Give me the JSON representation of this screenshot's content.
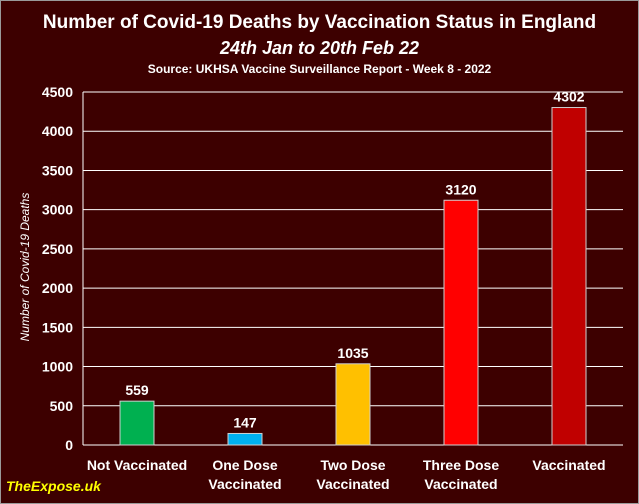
{
  "chart_data": {
    "type": "bar",
    "title": "Number of Covid-19 Deaths by Vaccination Status in England",
    "subtitle": "24th Jan to 20th Feb 22",
    "source": "Source: UKHSA Vaccine Surveillance Report - Week 8 - 2022",
    "ylabel": "Number of Covid-19 Deaths",
    "xlabel": "",
    "ylim": [
      0,
      4500
    ],
    "yticks": [
      0,
      500,
      1000,
      1500,
      2000,
      2500,
      3000,
      3500,
      4000,
      4500
    ],
    "grid": true,
    "legend": "none",
    "categories": [
      [
        "Not Vaccinated"
      ],
      [
        "One Dose",
        "Vaccinated"
      ],
      [
        "Two Dose",
        "Vaccinated"
      ],
      [
        "Three Dose",
        "Vaccinated"
      ],
      [
        "Vaccinated"
      ]
    ],
    "values": [
      559,
      147,
      1035,
      3120,
      4302
    ],
    "bar_colors": [
      "#00b050",
      "#00b0f0",
      "#ffc000",
      "#ff0000",
      "#c00000"
    ]
  },
  "watermark": "TheExpose.uk",
  "colors": {
    "background": "#3d0000",
    "gridline": "#ffffff",
    "text": "#ffffff",
    "watermark": "#ffff00"
  }
}
